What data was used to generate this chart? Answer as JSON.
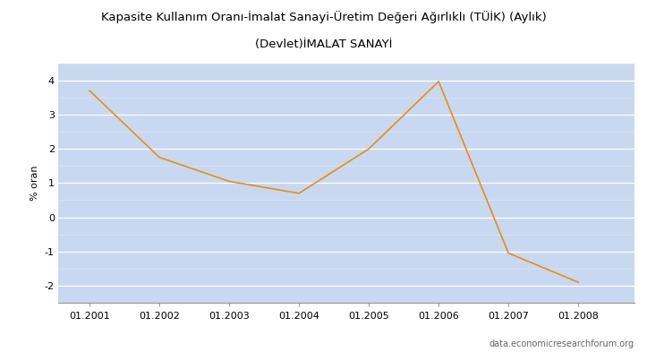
{
  "title_line1": "Kapasite Kullanım Oranı-İmalat Sanayi-Üretim Değeri Ağırlıklı (TÜİK) (Aylık)",
  "title_line2": "(Devlet)İMALAT SANAYİ",
  "ylabel": "% oran",
  "watermark": "data.economicresearchforum.org",
  "x_values": [
    2001,
    2002,
    2003,
    2004,
    2005,
    2006,
    2007,
    2008
  ],
  "y_values": [
    3.7,
    1.75,
    1.05,
    0.7,
    2.0,
    3.97,
    -1.05,
    -1.9
  ],
  "line_color": "#E8900A",
  "background_color": "#C8D8F0",
  "fig_bg_color": "#FFFFFF",
  "ylim": [
    -2.5,
    4.5
  ],
  "yticks": [
    -2,
    -1,
    0,
    1,
    2,
    3,
    4
  ],
  "x_tick_labels": [
    "01.2001",
    "01.2002",
    "01.2003",
    "01.2004",
    "01.2005",
    "01.2006",
    "01.2007",
    "01.2008"
  ],
  "grid_color": "#FFFFFF",
  "minor_grid_color": "#D8E4F0",
  "title_fontsize": 9.5,
  "ylabel_fontsize": 8,
  "tick_fontsize": 8,
  "watermark_fontsize": 7
}
